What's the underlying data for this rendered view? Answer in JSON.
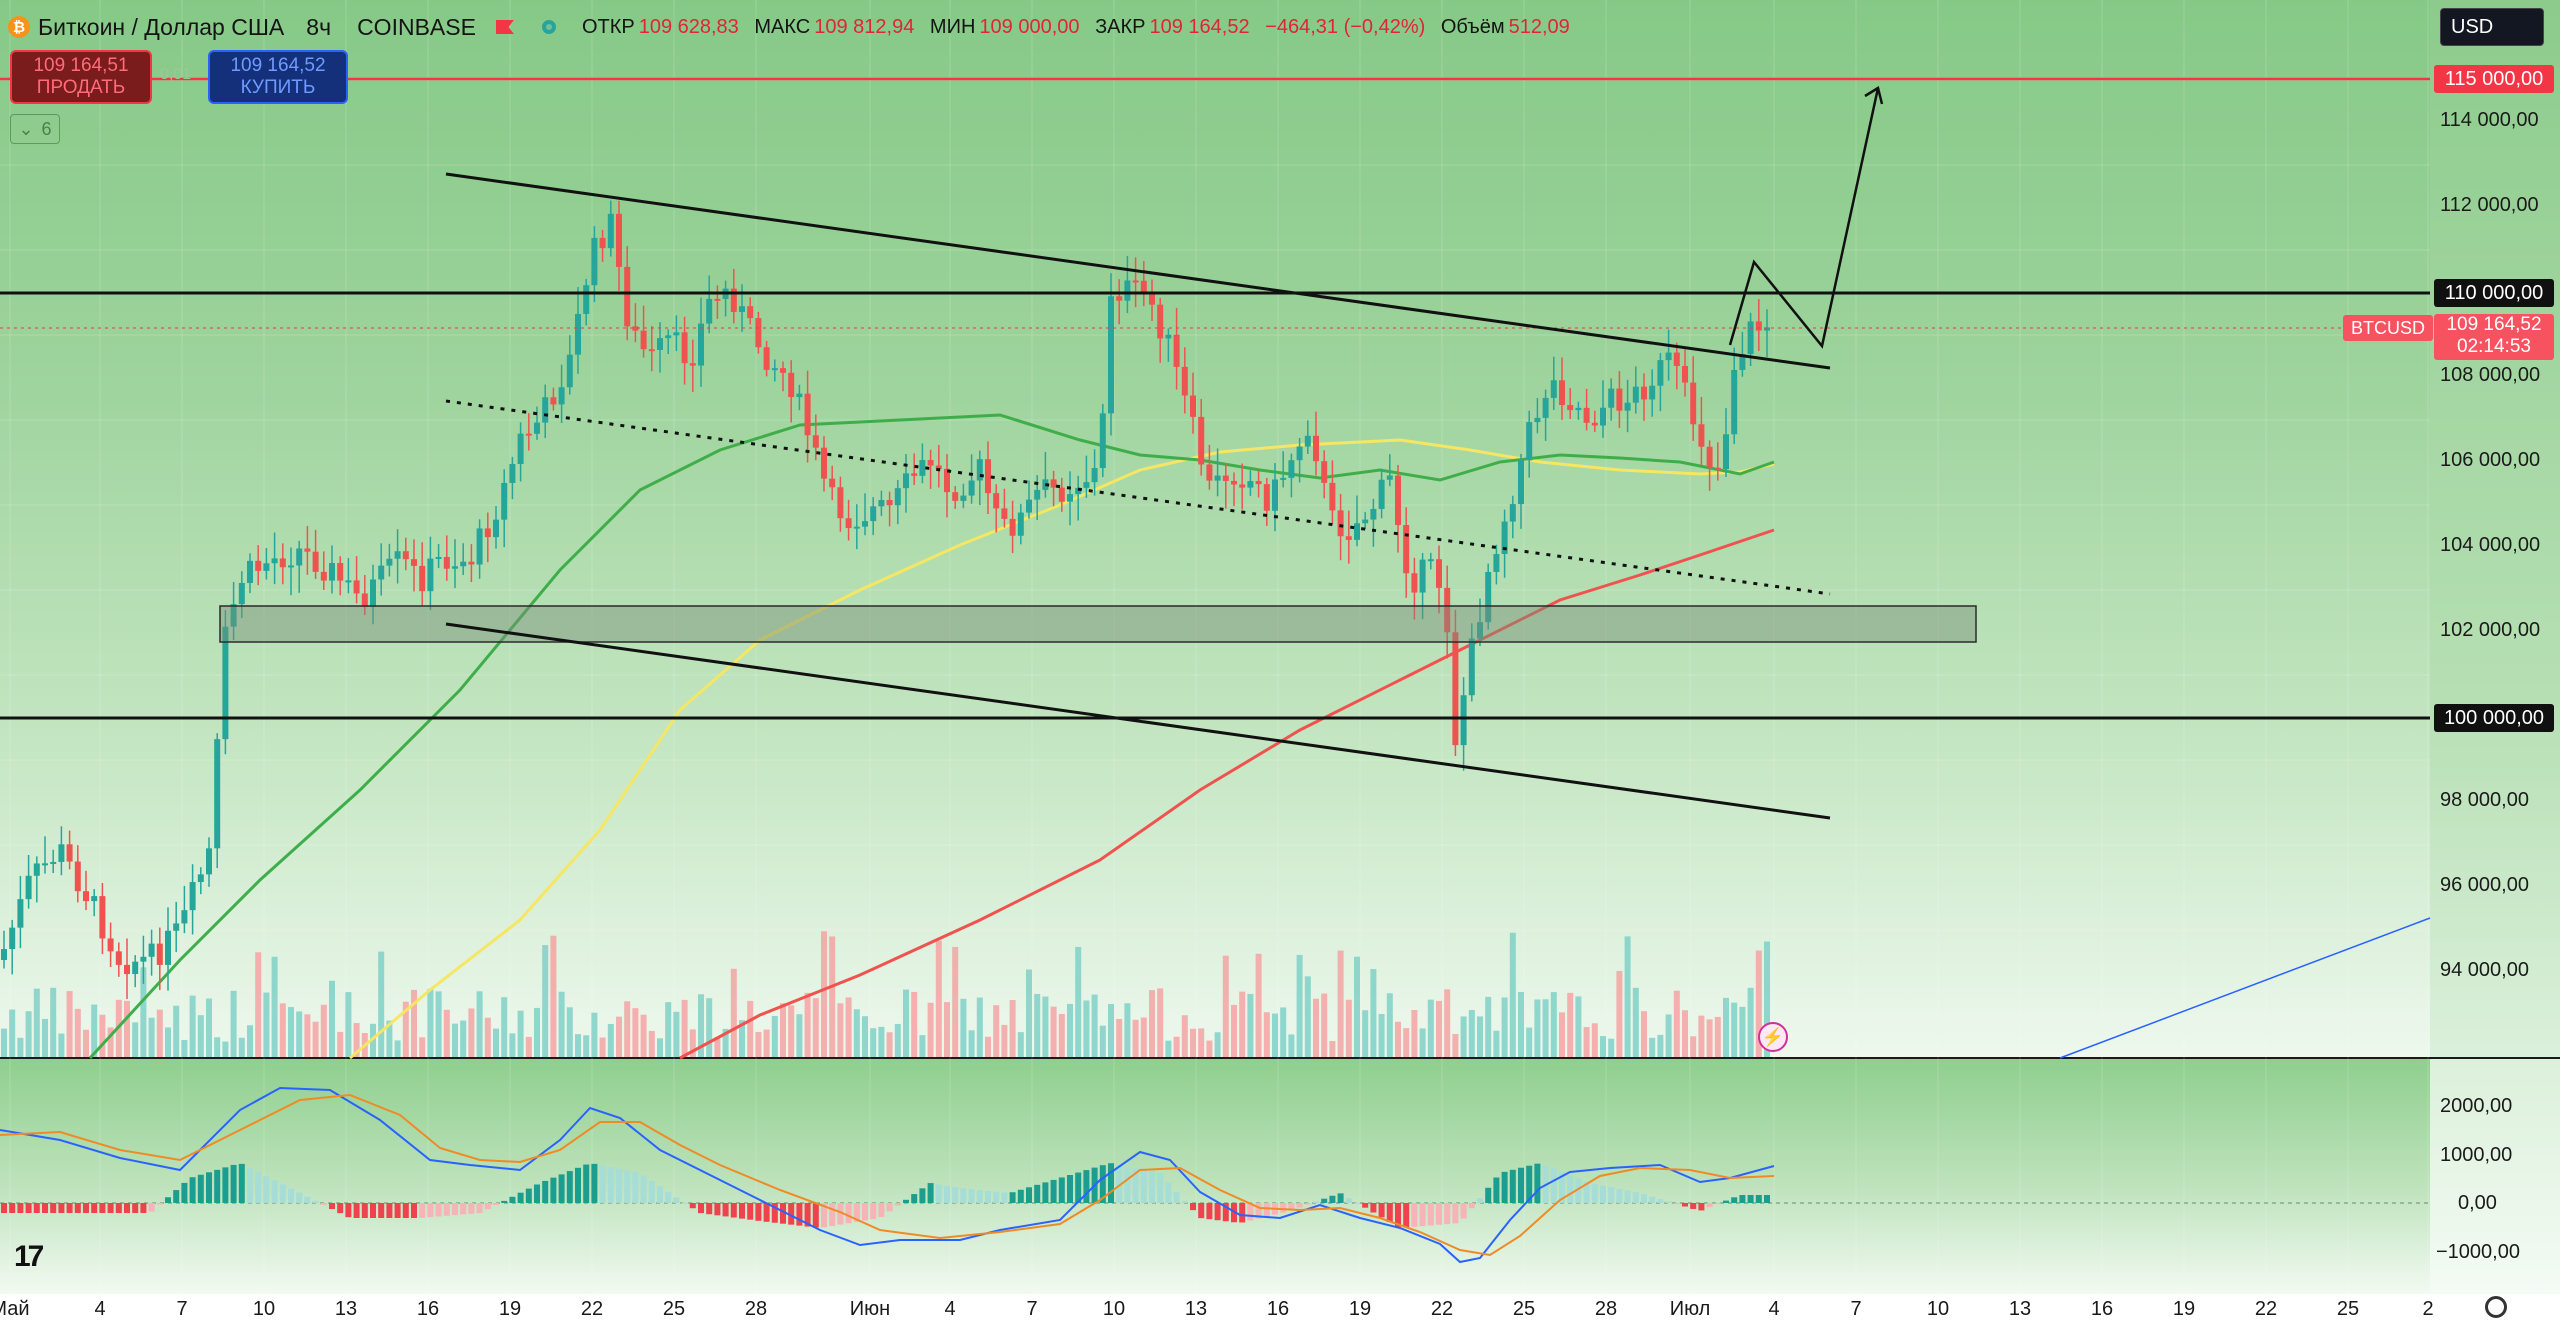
{
  "header": {
    "symbol_name": "Биткоин / Доллар США",
    "interval": "8ч",
    "exchange": "COINBASE",
    "ohlc": [
      {
        "label": "ОТКР",
        "value": "109 628,83"
      },
      {
        "label": "МАКС",
        "value": "109 812,94"
      },
      {
        "label": "МИН",
        "value": "109 000,00"
      },
      {
        "label": "ЗАКР",
        "value": "109 164,52"
      }
    ],
    "change": "−464,31 (−0,42%)",
    "volume_label": "Объём",
    "volume_value": "512,09"
  },
  "trade": {
    "sell_price": "109 164,51",
    "sell_label": "ПРОДАТЬ",
    "spread": "0,01",
    "buy_price": "109 164,52",
    "buy_label": "КУПИТЬ"
  },
  "indicators_collapsed_count": "6",
  "currency": "USD",
  "price_scale": {
    "labels": [
      "114 000,00",
      "112 000,00",
      "108 000,00",
      "106 000,00",
      "104 000,00",
      "102 000,00",
      "98 000,00",
      "96 000,00",
      "94 000,00"
    ],
    "level_boxes": [
      "115 000,00",
      "110 000,00",
      "100 000,00"
    ],
    "current_symbol": "BTCUSD",
    "current_price": "109 164,52",
    "countdown": "02:14:53"
  },
  "macd_scale": {
    "labels": [
      "2000,00",
      "1000,00",
      "0,00",
      "−1000,00"
    ]
  },
  "time_scale": {
    "labels": [
      "Май",
      "4",
      "7",
      "10",
      "13",
      "16",
      "19",
      "22",
      "25",
      "28",
      "Июн",
      "4",
      "7",
      "10",
      "13",
      "16",
      "19",
      "22",
      "25",
      "28",
      "Июл",
      "4",
      "7",
      "10",
      "13",
      "16",
      "19",
      "22",
      "25",
      "2"
    ]
  },
  "colors": {
    "up": "#26a69a",
    "down": "#ef5350",
    "sma_green": "#3fae4a",
    "sma_yellow": "#f5e663",
    "sma_red": "#f0524f",
    "accent_red": "#f23645"
  },
  "icons": [
    "bitcoin-logo-icon",
    "flag-icon",
    "status-dot-icon",
    "chevron-down-icon",
    "tradingview-logo-icon",
    "settings-gear-icon",
    "lightning-alert-icon"
  ]
}
